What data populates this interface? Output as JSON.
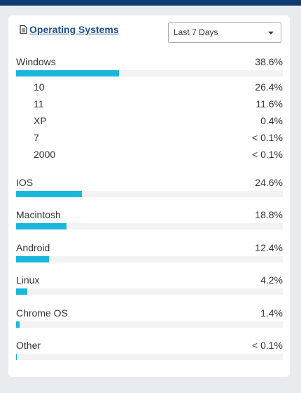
{
  "header": {
    "title": "Operating Systems",
    "range": "Last 7 Days"
  },
  "systems": [
    {
      "name": "Windows",
      "value": 38.6,
      "label": "38.6%",
      "versions": [
        {
          "name": "10",
          "value": 26.4,
          "label": "26.4%"
        },
        {
          "name": "11",
          "value": 11.6,
          "label": "11.6%"
        },
        {
          "name": "XP",
          "value": 0.4,
          "label": "0.4%"
        },
        {
          "name": "7",
          "label": "< 0.1%"
        },
        {
          "name": "2000",
          "label": "< 0.1%"
        }
      ]
    },
    {
      "name": "IOS",
      "value": 24.6,
      "label": "24.6%"
    },
    {
      "name": "Macintosh",
      "value": 18.8,
      "label": "18.8%"
    },
    {
      "name": "Android",
      "value": 12.4,
      "label": "12.4%"
    },
    {
      "name": "Linux",
      "value": 4.2,
      "label": "4.2%"
    },
    {
      "name": "Chrome OS",
      "value": 1.4,
      "label": "1.4%"
    },
    {
      "name": "Other",
      "label": "< 0.1%"
    }
  ]
}
